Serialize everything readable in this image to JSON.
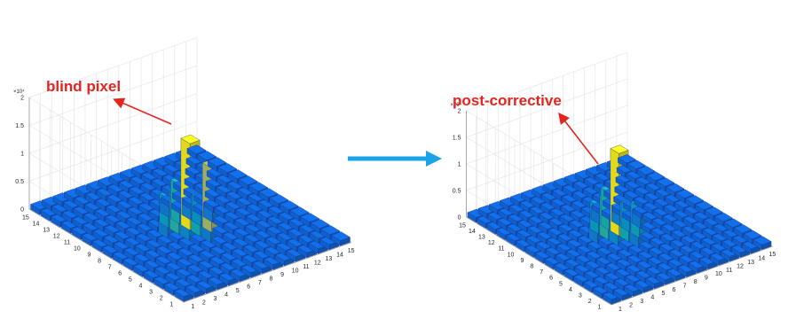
{
  "chart_data": [
    {
      "type": "bar3d",
      "zlim": [
        0,
        20000
      ],
      "z_ticks": [
        0,
        0.5,
        1,
        1.5,
        2
      ],
      "z_exponent": "×10⁴",
      "x_ticks": [
        "1",
        "2",
        "3",
        "4",
        "5",
        "6",
        "7",
        "8",
        "9",
        "10",
        "11",
        "12",
        "13",
        "14",
        "15"
      ],
      "y_ticks": [
        "1",
        "2",
        "3",
        "4",
        "5",
        "6",
        "7",
        "8",
        "9",
        "10",
        "11",
        "12",
        "13",
        "14",
        "15"
      ],
      "grid": true,
      "baseline": 900,
      "peak": [
        {
          "row": 8,
          "col": 8,
          "value": 15500
        },
        {
          "row": 7,
          "col": 7,
          "value": 11500
        },
        {
          "row": 8,
          "col": 9,
          "value": 7500
        },
        {
          "row": 9,
          "col": 8,
          "value": 7000
        },
        {
          "row": 7,
          "col": 8,
          "value": 6500
        },
        {
          "row": 8,
          "col": 7,
          "value": 4600
        },
        {
          "row": 9,
          "col": 9,
          "value": 5200
        },
        {
          "row": 7,
          "col": 9,
          "value": 3800
        },
        {
          "row": 9,
          "col": 7,
          "value": 3000
        },
        {
          "row": 6,
          "col": 8,
          "value": 2800
        },
        {
          "row": 8,
          "col": 6,
          "value": 2500
        },
        {
          "row": 10,
          "col": 8,
          "value": 2400
        },
        {
          "row": 8,
          "col": 10,
          "value": 2600
        }
      ],
      "annotation": {
        "text": "blind pixel",
        "color": "#e52420"
      }
    },
    {
      "type": "bar3d",
      "zlim": [
        0,
        20000
      ],
      "z_ticks": [
        0,
        0.5,
        1,
        1.5,
        2
      ],
      "z_exponent": "×10⁴",
      "x_ticks": [
        "1",
        "2",
        "3",
        "4",
        "5",
        "6",
        "7",
        "8",
        "9",
        "10",
        "11",
        "12",
        "13",
        "14",
        "15"
      ],
      "y_ticks": [
        "1",
        "2",
        "3",
        "4",
        "5",
        "6",
        "7",
        "8",
        "9",
        "10",
        "11",
        "12",
        "13",
        "14",
        "15"
      ],
      "grid": true,
      "baseline": 900,
      "peak": [
        {
          "row": 8,
          "col": 8,
          "value": 15500
        },
        {
          "row": 7,
          "col": 7,
          "value": 5800
        },
        {
          "row": 8,
          "col": 9,
          "value": 7500
        },
        {
          "row": 9,
          "col": 8,
          "value": 7000
        },
        {
          "row": 7,
          "col": 8,
          "value": 6500
        },
        {
          "row": 8,
          "col": 7,
          "value": 4600
        },
        {
          "row": 9,
          "col": 9,
          "value": 5200
        },
        {
          "row": 7,
          "col": 9,
          "value": 3800
        },
        {
          "row": 9,
          "col": 7,
          "value": 3000
        },
        {
          "row": 6,
          "col": 8,
          "value": 2800
        },
        {
          "row": 8,
          "col": 6,
          "value": 2500
        },
        {
          "row": 10,
          "col": 8,
          "value": 2400
        },
        {
          "row": 8,
          "col": 10,
          "value": 2600
        }
      ],
      "annotation": {
        "text": "post-corrective",
        "color": "#e52420"
      }
    }
  ],
  "transition_arrow_color": "#1aa3e8",
  "colormap": "parula"
}
